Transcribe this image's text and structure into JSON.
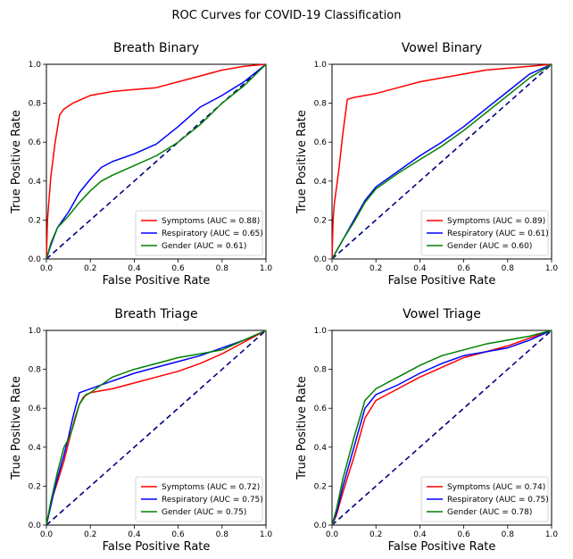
{
  "figure": {
    "title": "ROC Curves for COVID-19 Classification"
  },
  "colors": {
    "Symptoms": "#ff0000",
    "Respiratory": "#0000ff",
    "Gender": "#008000",
    "diagonal": "#000080"
  },
  "chart_data": [
    {
      "type": "line",
      "title": "Breath Binary",
      "xlabel": "False Positive Rate",
      "ylabel": "True Positive Rate",
      "xlim": [
        0,
        1
      ],
      "ylim": [
        0,
        1
      ],
      "ticks": [
        "0.0",
        "0.2",
        "0.4",
        "0.6",
        "0.8",
        "1.0"
      ],
      "legend_position": "lower-right",
      "series": [
        {
          "name": "Symptoms",
          "legend": "Symptoms (AUC = 0.88)",
          "points": [
            [
              0,
              0
            ],
            [
              0.005,
              0.2
            ],
            [
              0.01,
              0.28
            ],
            [
              0.02,
              0.42
            ],
            [
              0.04,
              0.6
            ],
            [
              0.06,
              0.74
            ],
            [
              0.08,
              0.77
            ],
            [
              0.12,
              0.8
            ],
            [
              0.2,
              0.84
            ],
            [
              0.3,
              0.86
            ],
            [
              0.4,
              0.87
            ],
            [
              0.5,
              0.88
            ],
            [
              0.6,
              0.91
            ],
            [
              0.7,
              0.94
            ],
            [
              0.8,
              0.97
            ],
            [
              0.9,
              0.99
            ],
            [
              1,
              1
            ]
          ]
        },
        {
          "name": "Respiratory",
          "legend": "Respiratory (AUC = 0.65)",
          "points": [
            [
              0,
              0
            ],
            [
              0.02,
              0.07
            ],
            [
              0.05,
              0.16
            ],
            [
              0.1,
              0.24
            ],
            [
              0.15,
              0.34
            ],
            [
              0.2,
              0.41
            ],
            [
              0.25,
              0.47
            ],
            [
              0.3,
              0.5
            ],
            [
              0.4,
              0.54
            ],
            [
              0.5,
              0.59
            ],
            [
              0.6,
              0.68
            ],
            [
              0.7,
              0.78
            ],
            [
              0.8,
              0.84
            ],
            [
              0.9,
              0.91
            ],
            [
              1,
              1
            ]
          ]
        },
        {
          "name": "Gender",
          "legend": "Gender (AUC = 0.61)",
          "points": [
            [
              0,
              0
            ],
            [
              0.02,
              0.08
            ],
            [
              0.05,
              0.16
            ],
            [
              0.1,
              0.22
            ],
            [
              0.15,
              0.29
            ],
            [
              0.2,
              0.35
            ],
            [
              0.25,
              0.4
            ],
            [
              0.3,
              0.43
            ],
            [
              0.4,
              0.48
            ],
            [
              0.5,
              0.53
            ],
            [
              0.6,
              0.6
            ],
            [
              0.7,
              0.69
            ],
            [
              0.8,
              0.8
            ],
            [
              0.9,
              0.89
            ],
            [
              1,
              1
            ]
          ]
        }
      ]
    },
    {
      "type": "line",
      "title": "Vowel Binary",
      "xlabel": "False Positive Rate",
      "ylabel": "True Positive Rate",
      "xlim": [
        0,
        1
      ],
      "ylim": [
        0,
        1
      ],
      "ticks": [
        "0.0",
        "0.2",
        "0.4",
        "0.6",
        "0.8",
        "1.0"
      ],
      "legend_position": "lower-right",
      "series": [
        {
          "name": "Symptoms",
          "legend": "Symptoms (AUC = 0.89)",
          "points": [
            [
              0,
              0
            ],
            [
              0.005,
              0.2
            ],
            [
              0.01,
              0.28
            ],
            [
              0.03,
              0.45
            ],
            [
              0.05,
              0.65
            ],
            [
              0.07,
              0.82
            ],
            [
              0.1,
              0.83
            ],
            [
              0.2,
              0.85
            ],
            [
              0.3,
              0.88
            ],
            [
              0.4,
              0.91
            ],
            [
              0.5,
              0.93
            ],
            [
              0.6,
              0.95
            ],
            [
              0.7,
              0.97
            ],
            [
              0.8,
              0.98
            ],
            [
              0.9,
              0.99
            ],
            [
              1,
              1
            ]
          ]
        },
        {
          "name": "Respiratory",
          "legend": "Respiratory (AUC = 0.61)",
          "points": [
            [
              0,
              0
            ],
            [
              0.02,
              0.04
            ],
            [
              0.05,
              0.1
            ],
            [
              0.1,
              0.2
            ],
            [
              0.15,
              0.3
            ],
            [
              0.2,
              0.37
            ],
            [
              0.3,
              0.45
            ],
            [
              0.4,
              0.53
            ],
            [
              0.5,
              0.6
            ],
            [
              0.6,
              0.68
            ],
            [
              0.7,
              0.77
            ],
            [
              0.8,
              0.86
            ],
            [
              0.9,
              0.95
            ],
            [
              1,
              1
            ]
          ]
        },
        {
          "name": "Gender",
          "legend": "Gender (AUC = 0.60)",
          "points": [
            [
              0,
              0
            ],
            [
              0.02,
              0.04
            ],
            [
              0.05,
              0.1
            ],
            [
              0.1,
              0.19
            ],
            [
              0.15,
              0.29
            ],
            [
              0.2,
              0.36
            ],
            [
              0.3,
              0.44
            ],
            [
              0.4,
              0.51
            ],
            [
              0.5,
              0.58
            ],
            [
              0.6,
              0.66
            ],
            [
              0.7,
              0.75
            ],
            [
              0.8,
              0.84
            ],
            [
              0.9,
              0.93
            ],
            [
              1,
              1
            ]
          ]
        }
      ]
    },
    {
      "type": "line",
      "title": "Breath Triage",
      "xlabel": "False Positive Rate",
      "ylabel": "True Positive Rate",
      "xlim": [
        0,
        1
      ],
      "ylim": [
        0,
        1
      ],
      "ticks": [
        "0.0",
        "0.2",
        "0.4",
        "0.6",
        "0.8",
        "1.0"
      ],
      "legend_position": "lower-right",
      "series": [
        {
          "name": "Symptoms",
          "legend": "Symptoms (AUC = 0.72)",
          "points": [
            [
              0,
              0
            ],
            [
              0.03,
              0.15
            ],
            [
              0.05,
              0.22
            ],
            [
              0.08,
              0.33
            ],
            [
              0.1,
              0.42
            ],
            [
              0.13,
              0.55
            ],
            [
              0.15,
              0.62
            ],
            [
              0.17,
              0.66
            ],
            [
              0.2,
              0.68
            ],
            [
              0.3,
              0.7
            ],
            [
              0.4,
              0.73
            ],
            [
              0.5,
              0.76
            ],
            [
              0.6,
              0.79
            ],
            [
              0.7,
              0.83
            ],
            [
              0.8,
              0.88
            ],
            [
              0.9,
              0.94
            ],
            [
              1,
              1
            ]
          ]
        },
        {
          "name": "Respiratory",
          "legend": "Respiratory (AUC = 0.75)",
          "points": [
            [
              0,
              0
            ],
            [
              0.03,
              0.15
            ],
            [
              0.05,
              0.24
            ],
            [
              0.08,
              0.36
            ],
            [
              0.1,
              0.45
            ],
            [
              0.12,
              0.55
            ],
            [
              0.15,
              0.68
            ],
            [
              0.2,
              0.7
            ],
            [
              0.3,
              0.74
            ],
            [
              0.4,
              0.78
            ],
            [
              0.5,
              0.81
            ],
            [
              0.6,
              0.84
            ],
            [
              0.7,
              0.87
            ],
            [
              0.8,
              0.91
            ],
            [
              0.9,
              0.95
            ],
            [
              1,
              1
            ]
          ]
        },
        {
          "name": "Gender",
          "legend": "Gender (AUC = 0.75)",
          "points": [
            [
              0,
              0
            ],
            [
              0.02,
              0.12
            ],
            [
              0.05,
              0.27
            ],
            [
              0.08,
              0.4
            ],
            [
              0.1,
              0.44
            ],
            [
              0.12,
              0.5
            ],
            [
              0.15,
              0.62
            ],
            [
              0.18,
              0.67
            ],
            [
              0.2,
              0.68
            ],
            [
              0.3,
              0.76
            ],
            [
              0.4,
              0.8
            ],
            [
              0.5,
              0.83
            ],
            [
              0.6,
              0.86
            ],
            [
              0.7,
              0.88
            ],
            [
              0.8,
              0.9
            ],
            [
              0.9,
              0.95
            ],
            [
              1,
              1
            ]
          ]
        }
      ]
    },
    {
      "type": "line",
      "title": "Vowel Triage",
      "xlabel": "False Positive Rate",
      "ylabel": "True Positive Rate",
      "xlim": [
        0,
        1
      ],
      "ylim": [
        0,
        1
      ],
      "ticks": [
        "0.0",
        "0.2",
        "0.4",
        "0.6",
        "0.8",
        "1.0"
      ],
      "legend_position": "lower-right",
      "series": [
        {
          "name": "Symptoms",
          "legend": "Symptoms (AUC = 0.74)",
          "points": [
            [
              0,
              0
            ],
            [
              0.02,
              0.05
            ],
            [
              0.05,
              0.17
            ],
            [
              0.1,
              0.35
            ],
            [
              0.15,
              0.55
            ],
            [
              0.2,
              0.64
            ],
            [
              0.3,
              0.7
            ],
            [
              0.4,
              0.76
            ],
            [
              0.5,
              0.81
            ],
            [
              0.6,
              0.86
            ],
            [
              0.7,
              0.89
            ],
            [
              0.8,
              0.92
            ],
            [
              0.9,
              0.96
            ],
            [
              1,
              1
            ]
          ]
        },
        {
          "name": "Respiratory",
          "legend": "Respiratory (AUC = 0.75)",
          "points": [
            [
              0,
              0
            ],
            [
              0.02,
              0.06
            ],
            [
              0.05,
              0.2
            ],
            [
              0.1,
              0.4
            ],
            [
              0.15,
              0.6
            ],
            [
              0.2,
              0.67
            ],
            [
              0.3,
              0.72
            ],
            [
              0.4,
              0.78
            ],
            [
              0.5,
              0.83
            ],
            [
              0.6,
              0.87
            ],
            [
              0.7,
              0.89
            ],
            [
              0.8,
              0.91
            ],
            [
              0.9,
              0.95
            ],
            [
              1,
              1
            ]
          ]
        },
        {
          "name": "Gender",
          "legend": "Gender (AUC = 0.78)",
          "points": [
            [
              0,
              0
            ],
            [
              0.02,
              0.08
            ],
            [
              0.05,
              0.24
            ],
            [
              0.1,
              0.45
            ],
            [
              0.15,
              0.64
            ],
            [
              0.2,
              0.7
            ],
            [
              0.3,
              0.76
            ],
            [
              0.4,
              0.82
            ],
            [
              0.5,
              0.87
            ],
            [
              0.6,
              0.9
            ],
            [
              0.7,
              0.93
            ],
            [
              0.8,
              0.95
            ],
            [
              0.9,
              0.97
            ],
            [
              1,
              1
            ]
          ]
        }
      ]
    }
  ]
}
